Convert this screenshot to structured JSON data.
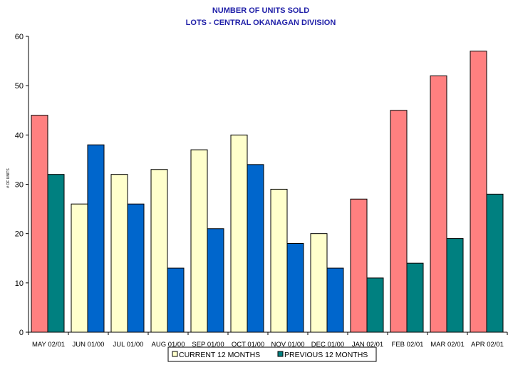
{
  "chart_data": {
    "type": "bar",
    "title": "NUMBER OF UNITS SOLD",
    "subtitle": "LOTS - CENTRAL OKANAGAN DIVISION",
    "ylabel": "# OF UNITS",
    "ylim": [
      0,
      60
    ],
    "yticks": [
      0,
      10,
      20,
      30,
      40,
      50,
      60
    ],
    "categories": [
      "MAY 02/01",
      "JUN 01/00",
      "JUL 01/00",
      "AUG 01/00",
      "SEP 01/00",
      "OCT 01/00",
      "NOV 01/00",
      "DEC 01/00",
      "JAN 02/01",
      "FEB 02/01",
      "MAR 02/01",
      "APR 02/01"
    ],
    "series": [
      {
        "name": "CURRENT 12 MONTHS",
        "values": [
          44,
          26,
          32,
          33,
          37,
          40,
          29,
          20,
          27,
          45,
          52,
          57
        ],
        "colors": [
          "#ff8080",
          "#ffffcc",
          "#ffffcc",
          "#ffffcc",
          "#ffffcc",
          "#ffffcc",
          "#ffffcc",
          "#ffffcc",
          "#ff8080",
          "#ff8080",
          "#ff8080",
          "#ff8080"
        ]
      },
      {
        "name": "PREVIOUS 12 MONTHS",
        "values": [
          32,
          38,
          26,
          13,
          21,
          34,
          18,
          13,
          11,
          14,
          19,
          28
        ],
        "colors": [
          "#008080",
          "#0066cc",
          "#0066cc",
          "#0066cc",
          "#0066cc",
          "#0066cc",
          "#0066cc",
          "#0066cc",
          "#008080",
          "#008080",
          "#008080",
          "#008080"
        ]
      }
    ],
    "legend": {
      "placement": "bottom",
      "items": [
        {
          "label": "CURRENT 12 MONTHS",
          "swatch": "#ffffcc"
        },
        {
          "label": "PREVIOUS 12 MONTHS",
          "swatch": "#008080"
        }
      ]
    },
    "grid": false
  }
}
